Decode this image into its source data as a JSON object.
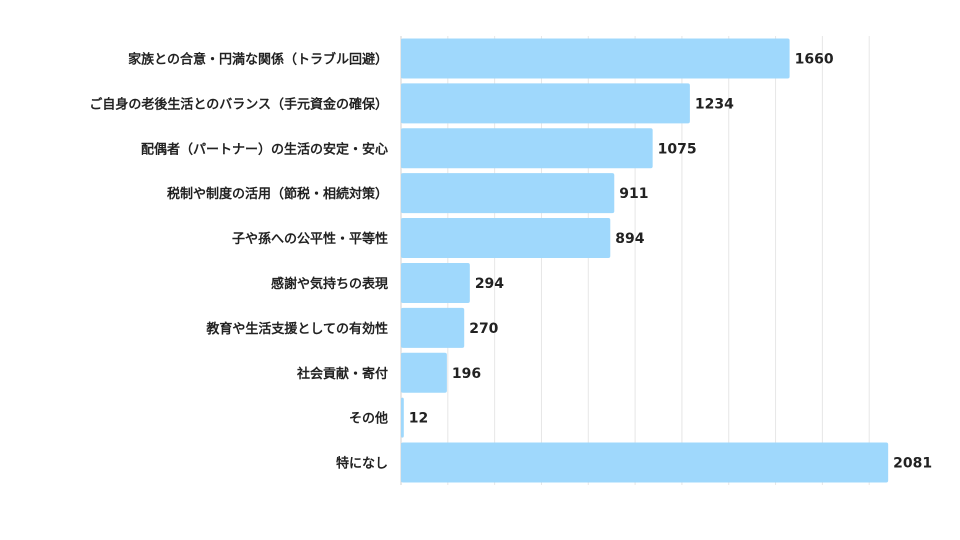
{
  "chart_data": {
    "type": "bar",
    "orientation": "horizontal",
    "title": "",
    "xlabel": "",
    "ylabel": "",
    "categories": [
      "家族との合意・円満な関係（トラブル回避）",
      "ご自身の老後生活とのバランス（手元資金の確保）",
      "配偶者（パートナー）の生活の安定・安心",
      "税制や制度の活用（節税・相続対策）",
      "子や孫への公平性・平等性",
      "感謝や気持ちの表現",
      "教育や生活支援としての有効性",
      "社会貢献・寄付",
      "その他",
      "特になし"
    ],
    "values": [
      1660,
      1234,
      1075,
      911,
      894,
      294,
      270,
      196,
      12,
      2081
    ],
    "xlim": [
      0,
      2200
    ],
    "grid_step": 200,
    "grid": true,
    "legend": "none",
    "bar_color": "#9fd8fc",
    "grid_color": "#e6e6e6"
  }
}
